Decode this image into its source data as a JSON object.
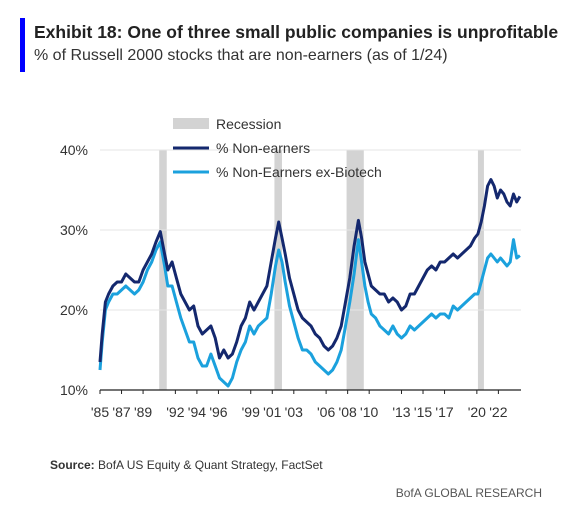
{
  "header": {
    "title": "Exhibit 18: One of three small public companies is unprofitable",
    "subtitle": "% of Russell 2000 stocks that are non-earners (as of 1/24)",
    "accent_color": "#0000FF"
  },
  "source": {
    "label": "Source:",
    "text": "BofA US Equity & Quant Strategy, FactSet"
  },
  "footer": {
    "text": "BofA GLOBAL RESEARCH"
  },
  "chart_data": {
    "type": "line",
    "ylim": [
      10,
      40
    ],
    "xlim": [
      1985.0,
      2024.1
    ],
    "yticks": [
      10,
      20,
      30,
      40
    ],
    "ytick_labels": [
      "10%",
      "20%",
      "30%",
      "40%"
    ],
    "xticks": [
      1985,
      1987,
      1989,
      1992,
      1994,
      1996,
      1999,
      2001,
      2003,
      2006,
      2008,
      2010,
      2013,
      2015,
      2017,
      2020,
      2022
    ],
    "xtick_labels": [
      "'85",
      "'87",
      "'89",
      "'92",
      "'94",
      "'96",
      "'99",
      "'01",
      "'03",
      "'06",
      "'08",
      "'10",
      "'13",
      "'15",
      "'17",
      "'20",
      "'22"
    ],
    "legend_position": "top-left",
    "recession_label": "Recession",
    "recession_color": "#D3D3D3",
    "recessions": [
      [
        1990.5,
        1991.2
      ],
      [
        2001.2,
        2001.9
      ],
      [
        2007.9,
        2009.5
      ],
      [
        2020.1,
        2020.4
      ]
    ],
    "series": [
      {
        "name": "% Non-earners",
        "color": "#14286E",
        "x": [
          1985.0,
          1985.2,
          1985.5,
          1985.8,
          1986.2,
          1986.6,
          1987.0,
          1987.4,
          1987.8,
          1988.2,
          1988.6,
          1989.0,
          1989.4,
          1989.8,
          1990.2,
          1990.6,
          1991.0,
          1991.3,
          1991.7,
          1992.1,
          1992.5,
          1992.9,
          1993.3,
          1993.7,
          1994.1,
          1994.5,
          1994.9,
          1995.3,
          1995.7,
          1996.1,
          1996.5,
          1996.9,
          1997.3,
          1997.7,
          1998.1,
          1998.5,
          1998.9,
          1999.3,
          1999.7,
          2000.1,
          2000.5,
          2000.9,
          2001.3,
          2001.6,
          2001.9,
          2002.2,
          2002.6,
          2003.0,
          2003.4,
          2003.8,
          2004.2,
          2004.6,
          2005.0,
          2005.4,
          2005.8,
          2006.2,
          2006.6,
          2007.0,
          2007.4,
          2007.8,
          2008.2,
          2008.6,
          2009.0,
          2009.3,
          2009.6,
          2009.9,
          2010.2,
          2010.6,
          2011.0,
          2011.4,
          2011.8,
          2012.2,
          2012.6,
          2013.0,
          2013.4,
          2013.8,
          2014.2,
          2014.6,
          2015.0,
          2015.4,
          2015.8,
          2016.2,
          2016.6,
          2017.0,
          2017.4,
          2017.8,
          2018.2,
          2018.6,
          2019.0,
          2019.4,
          2019.8,
          2020.1,
          2020.4,
          2020.7,
          2021.0,
          2021.3,
          2021.6,
          2021.9,
          2022.2,
          2022.5,
          2022.8,
          2023.1,
          2023.4,
          2023.7,
          2024.0
        ],
        "values": [
          13.5,
          17.0,
          21.0,
          22.0,
          23.0,
          23.5,
          23.5,
          24.5,
          24.0,
          23.5,
          23.5,
          25.0,
          26.0,
          27.0,
          28.5,
          29.8,
          27.0,
          25.0,
          26.0,
          24.0,
          22.0,
          21.0,
          20.0,
          20.5,
          18.0,
          17.0,
          17.5,
          18.0,
          16.5,
          14.0,
          15.0,
          14.0,
          14.5,
          16.0,
          18.0,
          19.0,
          21.0,
          20.0,
          21.0,
          22.0,
          23.0,
          26.0,
          29.0,
          31.0,
          29.0,
          27.0,
          24.0,
          22.0,
          20.0,
          19.0,
          18.5,
          18.0,
          17.0,
          16.5,
          15.5,
          15.0,
          15.5,
          16.5,
          18.0,
          21.0,
          24.0,
          28.0,
          31.2,
          29.0,
          26.0,
          24.5,
          23.0,
          22.5,
          22.0,
          22.0,
          21.0,
          21.5,
          21.0,
          20.0,
          20.5,
          22.0,
          22.0,
          23.0,
          24.0,
          25.0,
          25.5,
          25.0,
          26.0,
          26.0,
          26.5,
          27.0,
          26.5,
          27.0,
          27.5,
          28.0,
          29.0,
          29.5,
          31.0,
          33.0,
          35.5,
          36.3,
          35.5,
          34.0,
          35.0,
          34.5,
          33.5,
          33.0,
          34.5,
          33.5,
          34.2
        ]
      },
      {
        "name": "% Non-Earners ex-Biotech",
        "color": "#1BA1DD",
        "x": [
          1985.0,
          1985.2,
          1985.5,
          1985.8,
          1986.2,
          1986.6,
          1987.0,
          1987.4,
          1987.8,
          1988.2,
          1988.6,
          1989.0,
          1989.4,
          1989.8,
          1990.2,
          1990.6,
          1991.0,
          1991.3,
          1991.7,
          1992.1,
          1992.5,
          1992.9,
          1993.3,
          1993.7,
          1994.1,
          1994.5,
          1994.9,
          1995.3,
          1995.7,
          1996.1,
          1996.5,
          1996.9,
          1997.3,
          1997.7,
          1998.1,
          1998.5,
          1998.9,
          1999.3,
          1999.7,
          2000.1,
          2000.5,
          2000.9,
          2001.3,
          2001.6,
          2001.9,
          2002.2,
          2002.6,
          2003.0,
          2003.4,
          2003.8,
          2004.2,
          2004.6,
          2005.0,
          2005.4,
          2005.8,
          2006.2,
          2006.6,
          2007.0,
          2007.4,
          2007.8,
          2008.2,
          2008.6,
          2009.0,
          2009.3,
          2009.6,
          2009.9,
          2010.2,
          2010.6,
          2011.0,
          2011.4,
          2011.8,
          2012.2,
          2012.6,
          2013.0,
          2013.4,
          2013.8,
          2014.2,
          2014.6,
          2015.0,
          2015.4,
          2015.8,
          2016.2,
          2016.6,
          2017.0,
          2017.4,
          2017.8,
          2018.2,
          2018.6,
          2019.0,
          2019.4,
          2019.8,
          2020.1,
          2020.4,
          2020.7,
          2021.0,
          2021.3,
          2021.6,
          2021.9,
          2022.2,
          2022.5,
          2022.8,
          2023.1,
          2023.4,
          2023.7,
          2024.0
        ],
        "values": [
          12.5,
          16.0,
          20.0,
          21.0,
          22.0,
          22.0,
          22.5,
          23.0,
          22.5,
          22.0,
          22.5,
          23.5,
          25.0,
          26.0,
          27.5,
          28.5,
          25.5,
          23.0,
          23.0,
          21.0,
          19.0,
          17.5,
          16.0,
          16.0,
          14.0,
          13.0,
          13.0,
          14.5,
          13.0,
          11.5,
          11.0,
          10.5,
          11.5,
          13.5,
          15.0,
          16.0,
          18.0,
          17.0,
          18.0,
          18.5,
          19.0,
          22.0,
          25.5,
          27.5,
          26.0,
          23.5,
          20.5,
          18.5,
          16.5,
          15.0,
          15.0,
          14.5,
          13.5,
          13.0,
          12.5,
          12.0,
          12.5,
          13.5,
          15.0,
          18.0,
          21.0,
          24.5,
          28.8,
          26.0,
          23.0,
          21.0,
          19.5,
          19.0,
          18.0,
          17.5,
          17.0,
          18.0,
          17.0,
          16.5,
          17.0,
          18.0,
          17.5,
          18.0,
          18.5,
          19.0,
          19.5,
          19.0,
          19.5,
          19.5,
          19.0,
          20.5,
          20.0,
          20.5,
          21.0,
          21.5,
          22.0,
          22.0,
          23.5,
          25.0,
          26.5,
          27.0,
          26.5,
          26.0,
          26.5,
          26.0,
          25.5,
          26.0,
          28.8,
          26.5,
          26.8
        ]
      }
    ]
  }
}
